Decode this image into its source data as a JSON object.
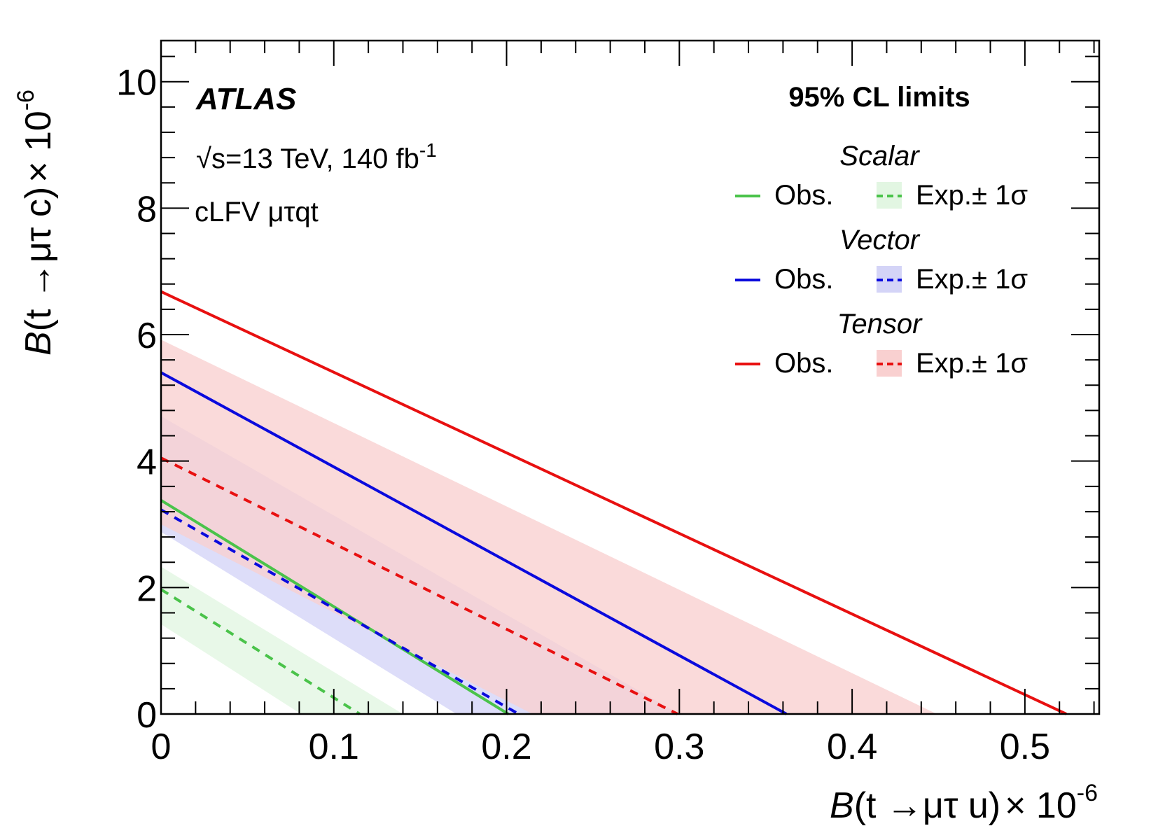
{
  "chart_data": {
    "type": "line",
    "x_axis": {
      "var": "B",
      "label_main": "(t →μτ u)",
      "label_scale": "× 10",
      "label_exp": "-6",
      "range": [
        0,
        0.543
      ],
      "major_ticks": [
        0,
        0.1,
        0.2,
        0.3,
        0.4,
        0.5
      ],
      "tick_labels": [
        "0",
        "0.1",
        "0.2",
        "0.3",
        "0.4",
        "0.5"
      ]
    },
    "y_axis": {
      "var": "B",
      "label_main": "(t →μτ c)",
      "label_scale": "× 10",
      "label_exp": "-6",
      "range": [
        0,
        10.65
      ],
      "major_ticks": [
        0,
        2,
        4,
        6,
        8,
        10
      ],
      "tick_labels": [
        "0",
        "2",
        "4",
        "6",
        "8",
        "10"
      ]
    },
    "experiment": "ATLAS",
    "energy_prefix": "√",
    "energy_s": "s",
    "energy_text": "=13 TeV, 140 fb",
    "lumi_exp": "-1",
    "analysis": "cLFV μτqt",
    "legend": {
      "title": "95% CL limits",
      "obs_label": "Obs.",
      "exp_label": "Exp.± 1σ",
      "groups": [
        {
          "name": "Scalar",
          "color": "#4ac34a",
          "band_color": "#e2f6e2"
        },
        {
          "name": "Vector",
          "color": "#0a0add",
          "band_color": "#d4d4f7"
        },
        {
          "name": "Tensor",
          "color": "#e81010",
          "band_color": "#f9d0d0"
        }
      ]
    },
    "series": [
      {
        "name": "Scalar",
        "observed": {
          "y_intercept": 3.38,
          "x_intercept": 0.201
        },
        "expected": {
          "y_intercept": 1.97,
          "x_intercept": 0.115
        },
        "band": {
          "low_y_intercept": 1.42,
          "low_x_intercept": 0.081,
          "high_y_intercept": 2.33,
          "high_x_intercept": 0.14
        }
      },
      {
        "name": "Vector",
        "observed": {
          "y_intercept": 5.4,
          "x_intercept": 0.362
        },
        "expected": {
          "y_intercept": 3.23,
          "x_intercept": 0.207
        },
        "band": {
          "low_y_intercept": 2.88,
          "low_x_intercept": 0.171,
          "high_y_intercept": 4.71,
          "high_x_intercept": 0.3
        }
      },
      {
        "name": "Tensor",
        "observed": {
          "y_intercept": 6.68,
          "x_intercept": 0.524
        },
        "expected": {
          "y_intercept": 4.05,
          "x_intercept": 0.299
        },
        "band": {
          "low_y_intercept": 3.0,
          "low_x_intercept": 0.215,
          "high_y_intercept": 5.92,
          "high_x_intercept": 0.449
        }
      }
    ]
  }
}
